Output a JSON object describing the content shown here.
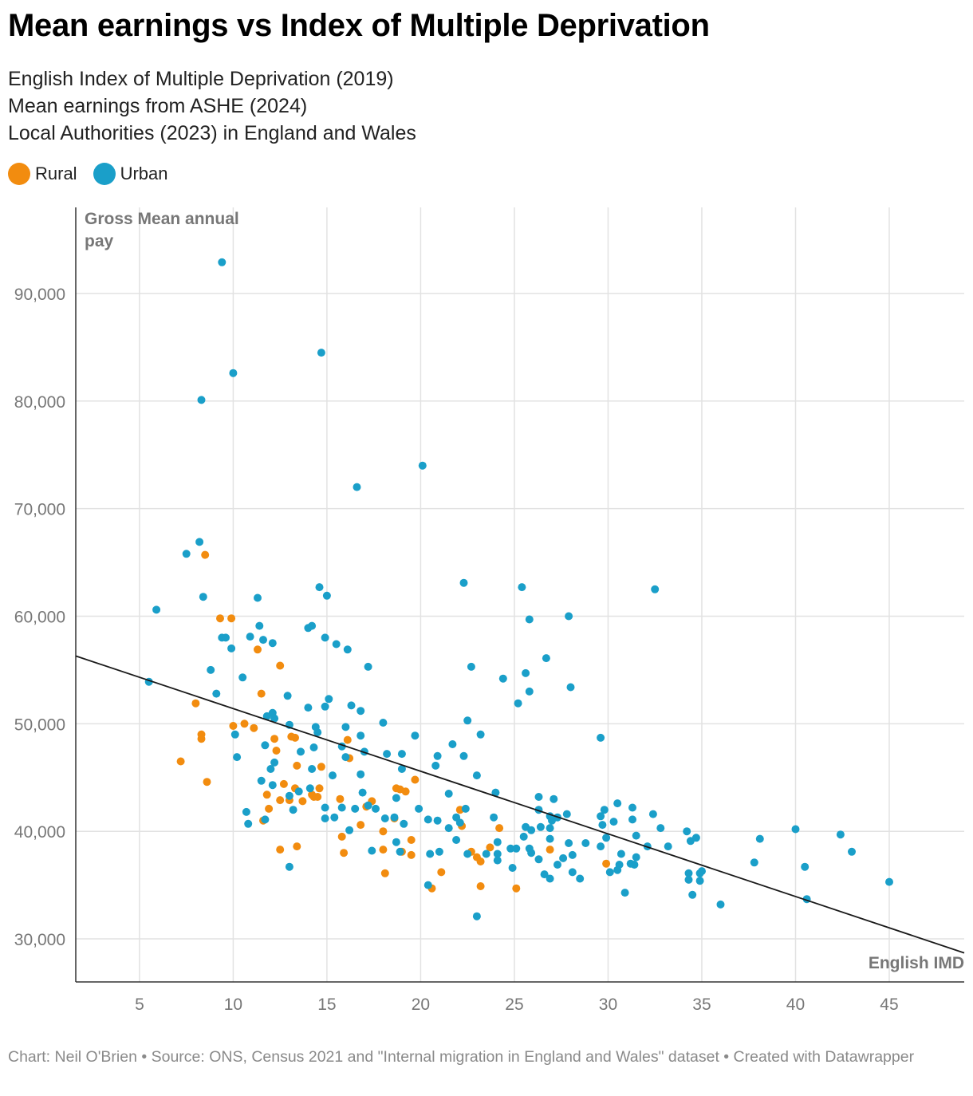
{
  "title": "Mean earnings vs Index of Multiple Deprivation",
  "subtitle": [
    "English Index of Multiple Deprivation (2019)",
    "Mean earnings from ASHE (2024)",
    "Local Authorities (2023) in England and Wales"
  ],
  "legend": [
    {
      "label": "Rural",
      "color": "#f28c0f"
    },
    {
      "label": "Urban",
      "color": "#1a9fc9"
    }
  ],
  "footer": "Chart: Neil O'Brien • Source: ONS, Census 2021 and \"Internal migration in England and Wales\" dataset  • Created with Datawrapper",
  "chart_data": {
    "type": "scatter",
    "title": "Mean earnings vs Index of Multiple Deprivation",
    "xlabel": "English IMD",
    "ylabel": "Gross Mean annual pay",
    "xlim": [
      1.6,
      49
    ],
    "ylim": [
      26000,
      98000
    ],
    "xticks": [
      5,
      10,
      15,
      20,
      25,
      30,
      35,
      40,
      45
    ],
    "yticks": [
      30000,
      40000,
      50000,
      60000,
      70000,
      80000,
      90000
    ],
    "grid": true,
    "legend_position": "top-left",
    "trendline": {
      "x": [
        1.6,
        49
      ],
      "y": [
        56300,
        28700
      ]
    },
    "series": [
      {
        "name": "Rural",
        "color": "#f28c0f",
        "points": [
          [
            8.5,
            65700
          ],
          [
            9.3,
            59800
          ],
          [
            9.9,
            59800
          ],
          [
            11.3,
            56900
          ],
          [
            12.5,
            55400
          ],
          [
            11.5,
            52800
          ],
          [
            8.0,
            51900
          ],
          [
            10.6,
            50000
          ],
          [
            10.0,
            49800
          ],
          [
            11.1,
            49600
          ],
          [
            8.3,
            49000
          ],
          [
            8.3,
            48600
          ],
          [
            12.2,
            48600
          ],
          [
            13.3,
            48700
          ],
          [
            13.1,
            48800
          ],
          [
            12.3,
            47500
          ],
          [
            7.2,
            46500
          ],
          [
            16.1,
            48500
          ],
          [
            16.2,
            46800
          ],
          [
            13.4,
            46100
          ],
          [
            14.7,
            46000
          ],
          [
            8.6,
            44600
          ],
          [
            12.7,
            44400
          ],
          [
            13.3,
            44000
          ],
          [
            14.6,
            44000
          ],
          [
            11.8,
            43400
          ],
          [
            14.2,
            43400
          ],
          [
            14.3,
            43200
          ],
          [
            14.5,
            43200
          ],
          [
            12.5,
            42900
          ],
          [
            13.0,
            42900
          ],
          [
            13.7,
            42800
          ],
          [
            15.7,
            43000
          ],
          [
            17.4,
            42800
          ],
          [
            17.1,
            42300
          ],
          [
            11.9,
            42100
          ],
          [
            11.6,
            41000
          ],
          [
            16.8,
            40600
          ],
          [
            15.8,
            39500
          ],
          [
            13.4,
            38600
          ],
          [
            12.5,
            38300
          ],
          [
            15.9,
            38000
          ],
          [
            18.0,
            38300
          ],
          [
            18.7,
            44000
          ],
          [
            18.9,
            43900
          ],
          [
            19.2,
            43700
          ],
          [
            19.7,
            44800
          ],
          [
            19.5,
            39200
          ],
          [
            18.1,
            36100
          ],
          [
            19.5,
            37800
          ],
          [
            19.0,
            38100
          ],
          [
            20.6,
            34700
          ],
          [
            21.1,
            36200
          ],
          [
            22.1,
            42000
          ],
          [
            22.2,
            40500
          ],
          [
            22.7,
            38100
          ],
          [
            23.0,
            37600
          ],
          [
            23.2,
            37200
          ],
          [
            23.7,
            38500
          ],
          [
            24.2,
            40300
          ],
          [
            23.2,
            34900
          ],
          [
            25.1,
            34700
          ],
          [
            26.9,
            38300
          ],
          [
            29.9,
            37000
          ],
          [
            18.0,
            40000
          ],
          [
            18.6,
            41200
          ]
        ]
      },
      {
        "name": "Urban",
        "color": "#1a9fc9",
        "points": [
          [
            9.4,
            92900
          ],
          [
            14.7,
            84500
          ],
          [
            10.0,
            82600
          ],
          [
            8.3,
            80100
          ],
          [
            20.1,
            74000
          ],
          [
            16.6,
            72000
          ],
          [
            8.2,
            66900
          ],
          [
            7.5,
            65800
          ],
          [
            5.9,
            60600
          ],
          [
            8.4,
            61800
          ],
          [
            11.3,
            61700
          ],
          [
            14.6,
            62700
          ],
          [
            15.0,
            61900
          ],
          [
            22.3,
            63100
          ],
          [
            25.4,
            62700
          ],
          [
            32.5,
            62500
          ],
          [
            9.4,
            58000
          ],
          [
            9.6,
            58000
          ],
          [
            9.9,
            57000
          ],
          [
            10.9,
            58100
          ],
          [
            11.6,
            57800
          ],
          [
            12.1,
            57500
          ],
          [
            11.4,
            59100
          ],
          [
            14.0,
            58900
          ],
          [
            14.2,
            59100
          ],
          [
            14.9,
            58000
          ],
          [
            15.5,
            57400
          ],
          [
            16.1,
            56900
          ],
          [
            8.8,
            55000
          ],
          [
            10.5,
            54300
          ],
          [
            9.1,
            52800
          ],
          [
            12.9,
            52600
          ],
          [
            14.0,
            51500
          ],
          [
            14.9,
            51600
          ],
          [
            15.1,
            52300
          ],
          [
            16.3,
            51700
          ],
          [
            16.8,
            51200
          ],
          [
            17.2,
            55300
          ],
          [
            22.7,
            55300
          ],
          [
            24.4,
            54200
          ],
          [
            25.6,
            54700
          ],
          [
            25.8,
            53000
          ],
          [
            25.2,
            51900
          ],
          [
            26.7,
            56100
          ],
          [
            27.9,
            60000
          ],
          [
            25.8,
            59700
          ],
          [
            28.0,
            53400
          ],
          [
            5.5,
            53900
          ],
          [
            11.8,
            50700
          ],
          [
            12.1,
            51000
          ],
          [
            12.2,
            50500
          ],
          [
            13.0,
            49900
          ],
          [
            14.4,
            49700
          ],
          [
            14.5,
            49200
          ],
          [
            16.0,
            49700
          ],
          [
            16.8,
            48900
          ],
          [
            18.0,
            50100
          ],
          [
            19.7,
            48900
          ],
          [
            22.5,
            50300
          ],
          [
            23.2,
            49000
          ],
          [
            29.6,
            48700
          ],
          [
            10.2,
            46900
          ],
          [
            10.1,
            49000
          ],
          [
            11.7,
            48000
          ],
          [
            12.2,
            46400
          ],
          [
            13.6,
            47400
          ],
          [
            14.3,
            47800
          ],
          [
            15.8,
            47900
          ],
          [
            16.0,
            46900
          ],
          [
            17.0,
            47400
          ],
          [
            18.2,
            47200
          ],
          [
            19.0,
            47200
          ],
          [
            20.9,
            47000
          ],
          [
            21.7,
            48100
          ],
          [
            22.3,
            47000
          ],
          [
            12.0,
            45800
          ],
          [
            14.2,
            45800
          ],
          [
            15.3,
            45200
          ],
          [
            16.8,
            45300
          ],
          [
            19.0,
            45800
          ],
          [
            20.8,
            46100
          ],
          [
            23.0,
            45200
          ],
          [
            11.5,
            44700
          ],
          [
            12.1,
            44300
          ],
          [
            13.5,
            43700
          ],
          [
            13.0,
            43300
          ],
          [
            14.1,
            44000
          ],
          [
            16.9,
            43600
          ],
          [
            18.7,
            43100
          ],
          [
            21.5,
            43500
          ],
          [
            24.0,
            43600
          ],
          [
            13.2,
            42000
          ],
          [
            14.9,
            42200
          ],
          [
            15.8,
            42200
          ],
          [
            16.5,
            42100
          ],
          [
            17.2,
            42400
          ],
          [
            17.6,
            42100
          ],
          [
            10.7,
            41800
          ],
          [
            11.7,
            41100
          ],
          [
            10.8,
            40700
          ],
          [
            13.0,
            36700
          ],
          [
            14.9,
            41200
          ],
          [
            16.2,
            40100
          ],
          [
            18.1,
            41200
          ],
          [
            18.6,
            41300
          ],
          [
            19.1,
            40700
          ],
          [
            20.4,
            41100
          ],
          [
            20.9,
            41000
          ],
          [
            21.5,
            40300
          ],
          [
            21.9,
            41300
          ],
          [
            22.1,
            40800
          ],
          [
            22.4,
            42100
          ],
          [
            23.9,
            41300
          ],
          [
            17.4,
            38200
          ],
          [
            18.7,
            39000
          ],
          [
            18.9,
            38100
          ],
          [
            19.9,
            42100
          ],
          [
            21.0,
            38100
          ],
          [
            20.4,
            35000
          ],
          [
            20.5,
            37900
          ],
          [
            22.5,
            37900
          ],
          [
            21.9,
            39200
          ],
          [
            23.5,
            37900
          ],
          [
            24.1,
            37900
          ],
          [
            24.1,
            37300
          ],
          [
            24.1,
            39000
          ],
          [
            23.0,
            32100
          ],
          [
            24.9,
            36600
          ],
          [
            24.8,
            38400
          ],
          [
            25.1,
            38400
          ],
          [
            25.5,
            39500
          ],
          [
            25.8,
            38400
          ],
          [
            25.9,
            38000
          ],
          [
            25.6,
            40400
          ],
          [
            25.9,
            40100
          ],
          [
            26.3,
            43200
          ],
          [
            26.3,
            42000
          ],
          [
            26.4,
            40400
          ],
          [
            26.9,
            41400
          ],
          [
            26.9,
            40300
          ],
          [
            27.1,
            43000
          ],
          [
            27.0,
            41000
          ],
          [
            27.3,
            41300
          ],
          [
            27.8,
            41600
          ],
          [
            26.9,
            39300
          ],
          [
            26.3,
            37400
          ],
          [
            26.6,
            36000
          ],
          [
            26.9,
            35600
          ],
          [
            27.3,
            36900
          ],
          [
            27.6,
            37500
          ],
          [
            28.1,
            37800
          ],
          [
            28.1,
            36200
          ],
          [
            28.5,
            35600
          ],
          [
            29.6,
            41400
          ],
          [
            29.7,
            40600
          ],
          [
            29.8,
            42000
          ],
          [
            30.3,
            40900
          ],
          [
            30.5,
            42600
          ],
          [
            29.9,
            39400
          ],
          [
            29.6,
            38600
          ],
          [
            30.1,
            36200
          ],
          [
            30.7,
            37900
          ],
          [
            30.6,
            36900
          ],
          [
            30.5,
            36400
          ],
          [
            31.3,
            42200
          ],
          [
            31.3,
            41100
          ],
          [
            31.5,
            39600
          ],
          [
            31.5,
            37600
          ],
          [
            31.2,
            37000
          ],
          [
            31.4,
            36900
          ],
          [
            30.9,
            34300
          ],
          [
            32.4,
            41600
          ],
          [
            32.1,
            38600
          ],
          [
            32.8,
            40300
          ],
          [
            33.2,
            38600
          ],
          [
            34.2,
            40000
          ],
          [
            34.4,
            39100
          ],
          [
            34.7,
            39400
          ],
          [
            34.3,
            36100
          ],
          [
            34.3,
            35500
          ],
          [
            34.9,
            36100
          ],
          [
            34.9,
            35400
          ],
          [
            35.0,
            36300
          ],
          [
            34.5,
            34100
          ],
          [
            36.0,
            33200
          ],
          [
            37.8,
            37100
          ],
          [
            38.1,
            39300
          ],
          [
            40.0,
            40200
          ],
          [
            40.5,
            36700
          ],
          [
            40.6,
            33700
          ],
          [
            42.4,
            39700
          ],
          [
            43.0,
            38100
          ],
          [
            45.0,
            35300
          ],
          [
            27.9,
            38900
          ],
          [
            28.8,
            38900
          ],
          [
            15.4,
            41300
          ]
        ]
      }
    ]
  }
}
